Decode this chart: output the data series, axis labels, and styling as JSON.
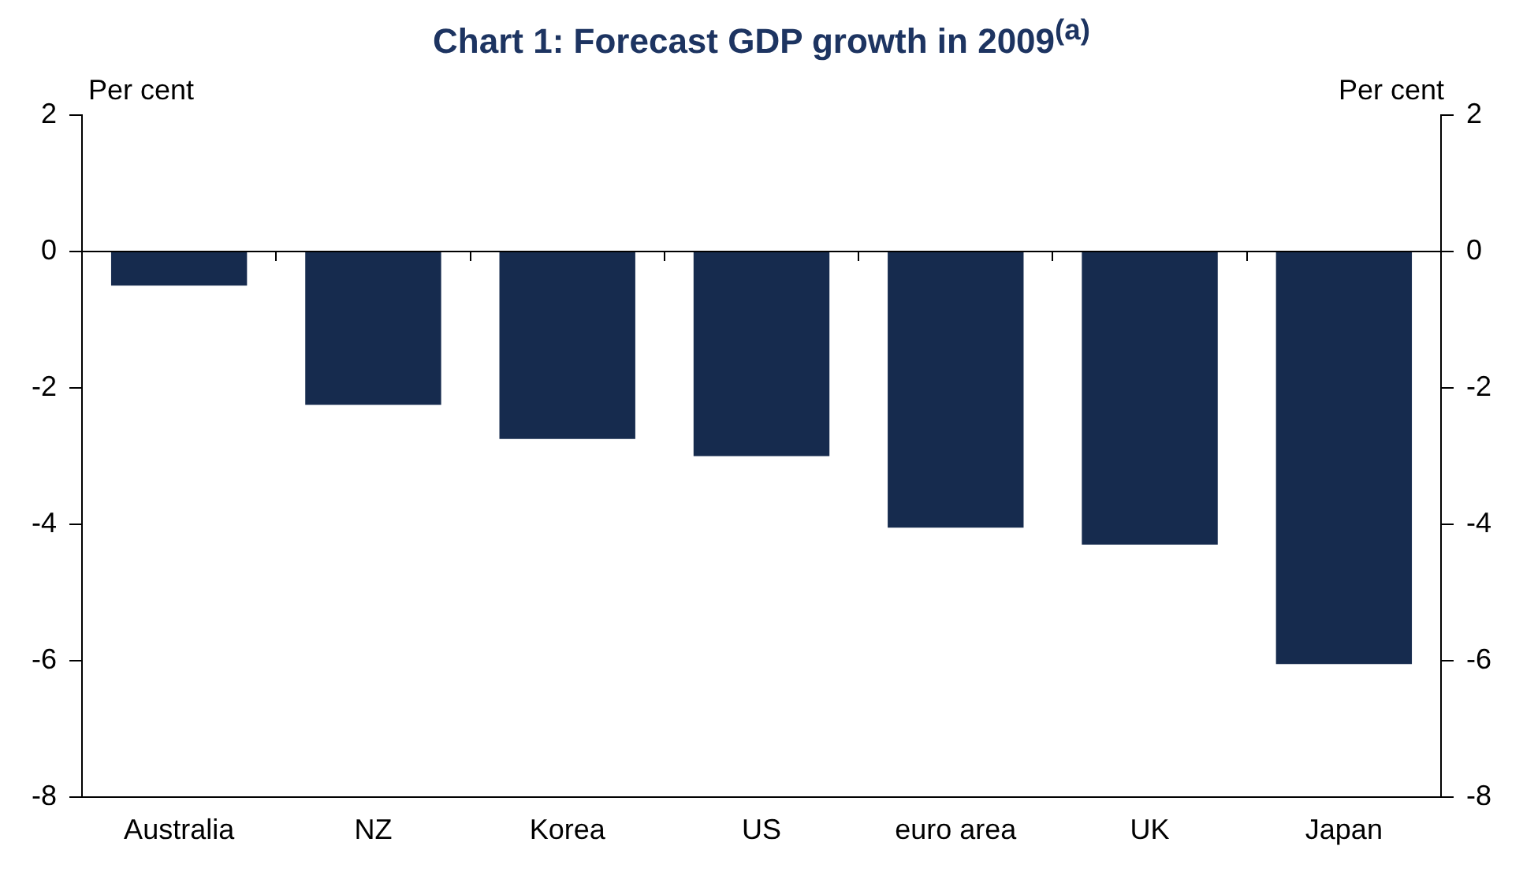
{
  "chart_data": {
    "type": "bar",
    "title": "Chart 1: Forecast GDP growth in 2009$^{(a)}$",
    "ylabel": "Per cent",
    "y2label": "Per cent",
    "categories": [
      "Australia",
      "NZ",
      "Korea",
      "US",
      "euro area",
      "UK",
      "Japan"
    ],
    "values": [
      -0.5,
      -2.25,
      -2.75,
      -3.0,
      -4.05,
      -4.3,
      -6.05
    ],
    "color": "#162b4e",
    "ylim": [
      -8,
      2
    ],
    "yticks": [
      -8,
      -6,
      -4,
      -2,
      0,
      2
    ],
    "y2lim": [
      -8,
      2
    ],
    "y2ticks": [
      -8,
      -6,
      -4,
      -2,
      0,
      2
    ],
    "ref_lines": [
      {
        "axis": "y",
        "value": 0,
        "color": "#000000"
      }
    ],
    "grid": false,
    "legend": false
  }
}
